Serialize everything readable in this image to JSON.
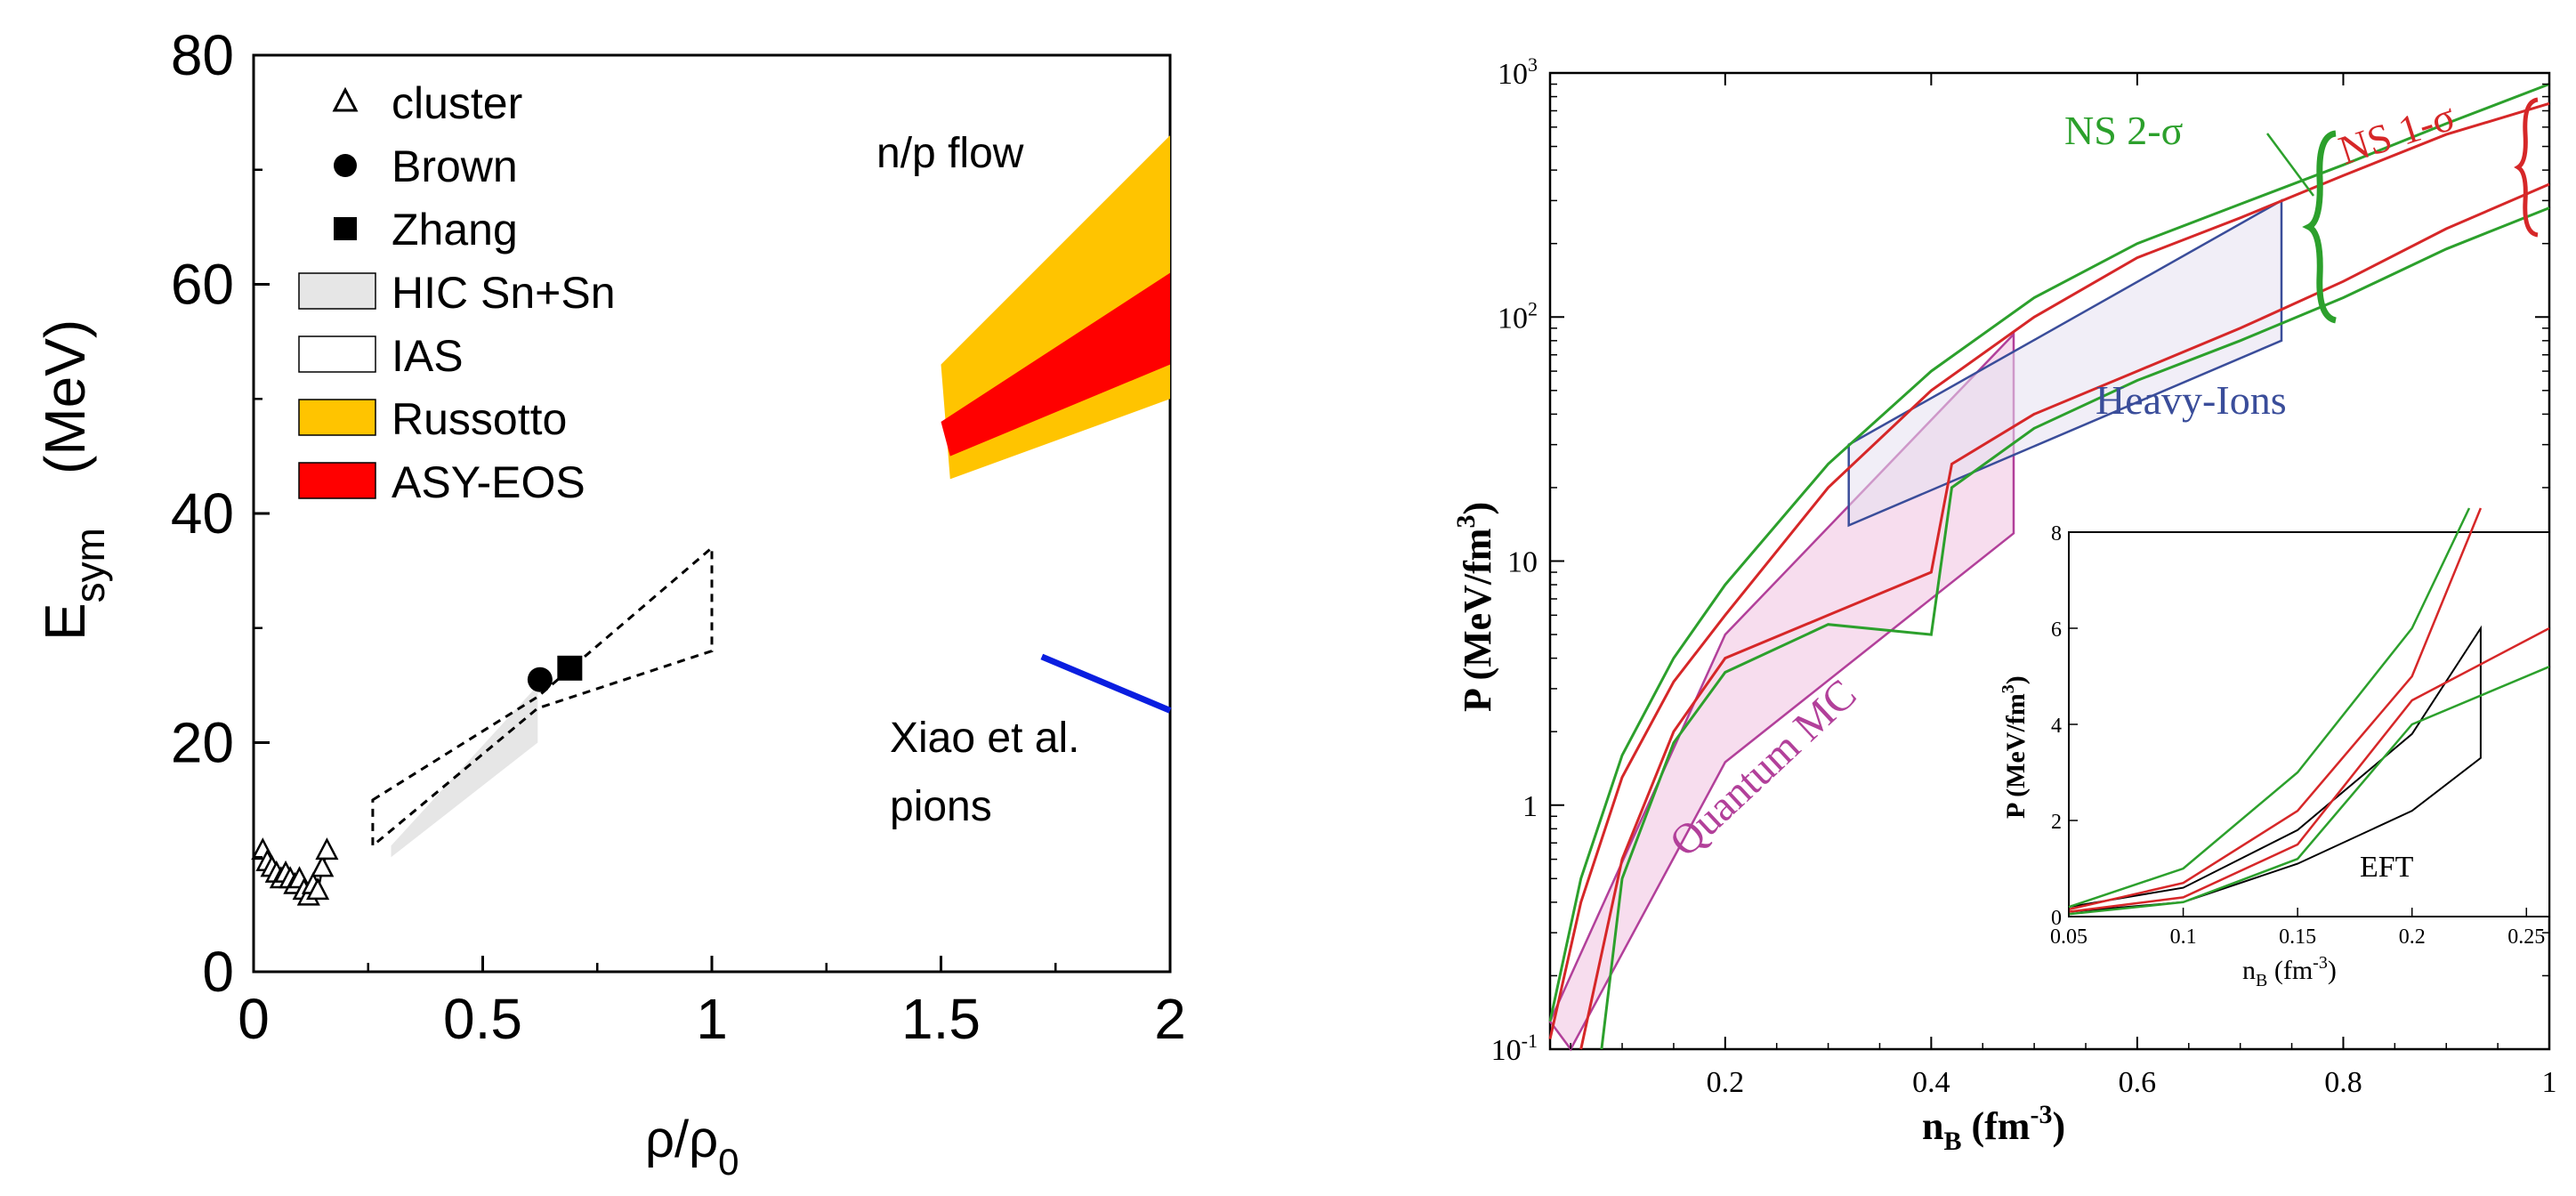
{
  "chart_data": [
    {
      "type": "scatter",
      "xlabel_main": "ρ/ρ",
      "xlabel_sub": "0",
      "ylabel_main": "E",
      "ylabel_sub": "sym",
      "ylabel_unit": "(MeV)",
      "xlim": [
        0,
        2
      ],
      "ylim": [
        0,
        80
      ],
      "x_ticks": [
        0,
        0.5,
        1,
        1.5,
        2
      ],
      "x_tick_labels": [
        "0",
        "0.5",
        "1",
        "1.5",
        "2"
      ],
      "y_ticks": [
        0,
        20,
        40,
        60,
        80
      ],
      "y_tick_labels": [
        "0",
        "20",
        "40",
        "60",
        "80"
      ],
      "legend": [
        {
          "label": "cluster",
          "marker": "triangle"
        },
        {
          "label": "Brown",
          "marker": "circle"
        },
        {
          "label": "Zhang",
          "marker": "square"
        },
        {
          "label": "HIC Sn+Sn",
          "marker": "box",
          "fill": "#e6e6e6"
        },
        {
          "label": "IAS",
          "marker": "box",
          "fill": "#ffffff"
        },
        {
          "label": "Russotto",
          "marker": "box",
          "fill": "#ffc400"
        },
        {
          "label": "ASY-EOS",
          "marker": "box",
          "fill": "#ff0000"
        }
      ],
      "annotations": [
        "n/p flow",
        "Xiao et al.",
        "pions"
      ],
      "cluster_points": [
        [
          0.02,
          10.5
        ],
        [
          0.03,
          9.5
        ],
        [
          0.04,
          9.0
        ],
        [
          0.05,
          8.5
        ],
        [
          0.06,
          8.0
        ],
        [
          0.07,
          8.5
        ],
        [
          0.08,
          8.0
        ],
        [
          0.09,
          7.5
        ],
        [
          0.1,
          8.0
        ],
        [
          0.11,
          7.0
        ],
        [
          0.12,
          6.5
        ],
        [
          0.13,
          7.5
        ],
        [
          0.14,
          7.0
        ],
        [
          0.15,
          9.0
        ],
        [
          0.16,
          10.5
        ]
      ],
      "brown": {
        "x": 0.625,
        "y": 25.5
      },
      "zhang": {
        "x": 0.69,
        "y": 26.5
      },
      "hic_region": [
        [
          0.3,
          11
        ],
        [
          0.62,
          25
        ],
        [
          0.62,
          20
        ],
        [
          0.3,
          10
        ]
      ],
      "ias_region": [
        [
          0.26,
          15
        ],
        [
          0.62,
          24
        ],
        [
          1.0,
          37
        ],
        [
          1.0,
          28
        ],
        [
          0.62,
          23
        ],
        [
          0.26,
          11
        ]
      ],
      "russotto_region": [
        [
          1.5,
          53
        ],
        [
          2.0,
          73
        ],
        [
          2.0,
          50
        ],
        [
          1.52,
          43
        ]
      ],
      "asyeos_region": [
        [
          1.5,
          48
        ],
        [
          2.0,
          61
        ],
        [
          2.0,
          53
        ],
        [
          1.52,
          45
        ]
      ],
      "xiao_line": [
        [
          1.72,
          27.5
        ],
        [
          2.0,
          22.8
        ]
      ],
      "colors": {
        "russotto": "#ffc400",
        "asyeos": "#ff0000",
        "xiao": "#0a1ee0",
        "hic": "#e6e6e6"
      }
    },
    {
      "type": "line",
      "xlabel_main": "n",
      "xlabel_sub": "B",
      "xlabel_unit": " (fm",
      "xlabel_sup": "-3",
      "xlabel_close": ")",
      "ylabel_text": "P (MeV/fm",
      "ylabel_sup": "3",
      "ylabel_close": ")",
      "yscale": "log",
      "xlim": [
        0.03,
        1.0
      ],
      "ylim": [
        0.1,
        1000
      ],
      "x_ticks": [
        0.2,
        0.4,
        0.6,
        0.8,
        1.0
      ],
      "x_tick_labels": [
        "0.2",
        "0.4",
        "0.6",
        "0.8",
        "1"
      ],
      "y_ticks": [
        0.1,
        1,
        10,
        100,
        1000
      ],
      "y_tick_labels": [
        {
          "base": "10",
          "sup": "-1"
        },
        {
          "base": "1",
          "sup": ""
        },
        {
          "base": "10",
          "sup": ""
        },
        {
          "base": "10",
          "sup": "2"
        },
        {
          "base": "10",
          "sup": "3"
        }
      ],
      "annotations": {
        "ns2": "NS 2-σ",
        "ns1": "NS 1-σ",
        "heavy_ions": "Heavy-Ions",
        "quantum_mc": "Quantum MC"
      },
      "colors": {
        "ns2": "#2ca02c",
        "ns1": "#d62728",
        "heavy": "#3a4d9a",
        "qmc": "#b2409a"
      },
      "series": [
        {
          "name": "NS 2-σ upper",
          "color": "#2ca02c",
          "points": [
            [
              0.03,
              0.13
            ],
            [
              0.06,
              0.5
            ],
            [
              0.1,
              1.6
            ],
            [
              0.15,
              4
            ],
            [
              0.2,
              8
            ],
            [
              0.3,
              25
            ],
            [
              0.4,
              60
            ],
            [
              0.5,
              120
            ],
            [
              0.6,
              200
            ],
            [
              0.7,
              290
            ],
            [
              0.8,
              420
            ],
            [
              0.9,
              620
            ],
            [
              1.0,
              900
            ]
          ]
        },
        {
          "name": "NS 1-σ upper",
          "color": "#d62728",
          "points": [
            [
              0.03,
              0.11
            ],
            [
              0.06,
              0.4
            ],
            [
              0.1,
              1.3
            ],
            [
              0.15,
              3.2
            ],
            [
              0.2,
              6
            ],
            [
              0.3,
              20
            ],
            [
              0.4,
              50
            ],
            [
              0.5,
              100
            ],
            [
              0.6,
              175
            ],
            [
              0.7,
              255
            ],
            [
              0.8,
              380
            ],
            [
              0.9,
              560
            ],
            [
              1.0,
              750
            ]
          ]
        },
        {
          "name": "NS 1-σ lower",
          "color": "#d62728",
          "points": [
            [
              0.06,
              0.1
            ],
            [
              0.1,
              0.6
            ],
            [
              0.15,
              2.0
            ],
            [
              0.2,
              4.0
            ],
            [
              0.3,
              6.0
            ],
            [
              0.4,
              9.0
            ],
            [
              0.42,
              25
            ],
            [
              0.5,
              40
            ],
            [
              0.6,
              60
            ],
            [
              0.7,
              90
            ],
            [
              0.8,
              140
            ],
            [
              0.9,
              230
            ],
            [
              1.0,
              350
            ]
          ]
        },
        {
          "name": "NS 2-σ lower",
          "color": "#2ca02c",
          "points": [
            [
              0.08,
              0.1
            ],
            [
              0.1,
              0.5
            ],
            [
              0.15,
              1.8
            ],
            [
              0.2,
              3.5
            ],
            [
              0.3,
              5.5
            ],
            [
              0.4,
              5.0
            ],
            [
              0.42,
              20
            ],
            [
              0.5,
              35
            ],
            [
              0.6,
              55
            ],
            [
              0.7,
              80
            ],
            [
              0.8,
              120
            ],
            [
              0.9,
              190
            ],
            [
              1.0,
              280
            ]
          ]
        }
      ],
      "heavy_ions_region": [
        [
          0.32,
          30
        ],
        [
          0.74,
          300
        ],
        [
          0.74,
          80
        ],
        [
          0.32,
          14
        ]
      ],
      "qmc_region": [
        [
          0.03,
          0.13
        ],
        [
          0.2,
          5
        ],
        [
          0.48,
          85
        ],
        [
          0.48,
          13
        ],
        [
          0.2,
          1.5
        ],
        [
          0.05,
          0.1
        ]
      ],
      "inset": {
        "xlabel_main": "n",
        "xlabel_sub": "B",
        "xlabel_unit": " (fm",
        "xlabel_sup": "-3",
        "xlabel_close": ")",
        "ylabel_text": "P (MeV/fm",
        "ylabel_sup": "3",
        "ylabel_close": ")",
        "label": "EFT",
        "xlim": [
          0.05,
          0.26
        ],
        "ylim": [
          0,
          8
        ],
        "x_ticks": [
          0.05,
          0.1,
          0.15,
          0.2,
          0.25
        ],
        "x_tick_labels": [
          "0.05",
          "0.1",
          "0.15",
          "0.2",
          "0.25"
        ],
        "y_ticks": [
          0,
          2,
          4,
          6,
          8
        ],
        "y_tick_labels": [
          "0",
          "2",
          "4",
          "6",
          "8"
        ],
        "eft_region": [
          [
            0.05,
            0.2
          ],
          [
            0.1,
            0.6
          ],
          [
            0.15,
            1.8
          ],
          [
            0.2,
            3.8
          ],
          [
            0.23,
            6.0
          ],
          [
            0.23,
            3.3
          ],
          [
            0.2,
            2.2
          ],
          [
            0.15,
            1.1
          ],
          [
            0.1,
            0.3
          ],
          [
            0.05,
            0.1
          ]
        ],
        "series": [
          {
            "color": "#2ca02c",
            "points": [
              [
                0.05,
                0.2
              ],
              [
                0.1,
                1.0
              ],
              [
                0.15,
                3.0
              ],
              [
                0.2,
                6.0
              ],
              [
                0.225,
                8.5
              ]
            ]
          },
          {
            "color": "#d62728",
            "points": [
              [
                0.05,
                0.15
              ],
              [
                0.1,
                0.7
              ],
              [
                0.15,
                2.2
              ],
              [
                0.2,
                5.0
              ],
              [
                0.23,
                8.5
              ]
            ]
          },
          {
            "color": "#d62728",
            "points": [
              [
                0.05,
                0.1
              ],
              [
                0.1,
                0.4
              ],
              [
                0.15,
                1.5
              ],
              [
                0.2,
                4.5
              ],
              [
                0.26,
                6.0
              ]
            ]
          },
          {
            "color": "#2ca02c",
            "points": [
              [
                0.05,
                0.05
              ],
              [
                0.1,
                0.3
              ],
              [
                0.15,
                1.2
              ],
              [
                0.2,
                4.0
              ],
              [
                0.26,
                5.2
              ]
            ]
          }
        ]
      }
    }
  ]
}
